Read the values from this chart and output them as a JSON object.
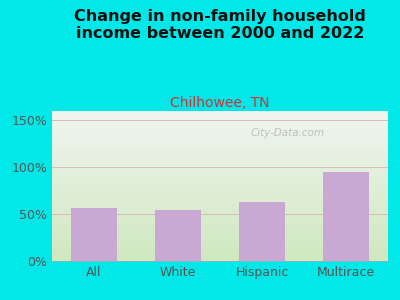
{
  "title": "Change in non-family household\nincome between 2000 and 2022",
  "subtitle": "Chilhowee, TN",
  "categories": [
    "All",
    "White",
    "Hispanic",
    "Multirace"
  ],
  "values": [
    57,
    54,
    63,
    95
  ],
  "bar_color": "#c9a8d4",
  "title_fontsize": 11.5,
  "subtitle_fontsize": 10,
  "subtitle_color": "#cc3333",
  "title_color": "#111111",
  "background_outer": "#00e8e8",
  "background_plot_top": "#f0f5f0",
  "background_plot_bottom": "#d0e8c0",
  "tick_color": "#555555",
  "ytick_color": "#555555",
  "ylim": [
    0,
    160
  ],
  "yticks": [
    0,
    50,
    100,
    150
  ],
  "ytick_labels": [
    "0%",
    "50%",
    "100%",
    "150%"
  ],
  "grid_color": "#e0b8b8",
  "watermark": "City-Data.com"
}
